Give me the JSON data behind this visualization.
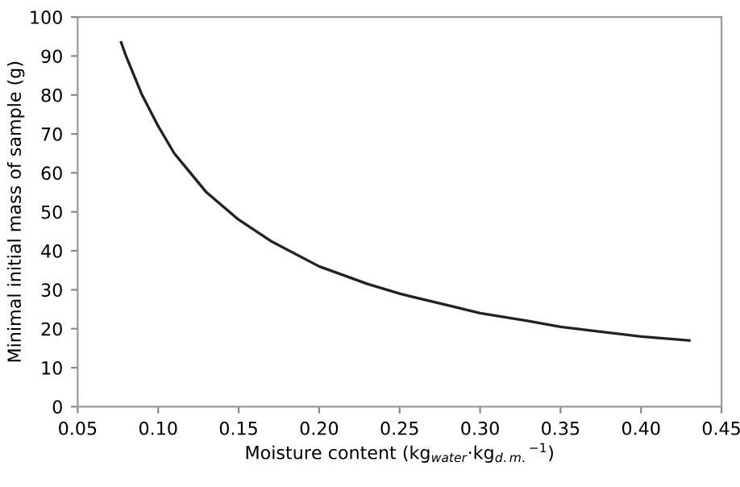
{
  "chart_data": {
    "type": "line",
    "xlabel": "Moisture content (kg$_{water}$·kg$_{d.m.}$$^{−1}$)",
    "ylabel": "Minimal initial mass of sample (g)",
    "x": [
      0.077,
      0.08,
      0.09,
      0.1,
      0.11,
      0.12,
      0.13,
      0.14,
      0.15,
      0.17,
      0.2,
      0.23,
      0.25,
      0.28,
      0.3,
      0.33,
      0.35,
      0.38,
      0.4,
      0.43
    ],
    "series": [
      {
        "color": "#222222",
        "values": [
          93.5,
          90,
          80,
          72,
          65,
          60,
          55,
          51.5,
          48,
          42.5,
          36,
          31.5,
          29,
          26,
          24,
          22,
          20.5,
          19,
          18,
          17
        ]
      }
    ],
    "xlim": [
      0.05,
      0.45
    ],
    "xticks": [
      {
        "value": 0.05,
        "label": "0.05"
      },
      {
        "value": 0.1,
        "label": "0.10"
      },
      {
        "value": 0.15,
        "label": "0.15"
      },
      {
        "value": 0.2,
        "label": "0.20"
      },
      {
        "value": 0.25,
        "label": "0.25"
      },
      {
        "value": 0.3,
        "label": "0.30"
      },
      {
        "value": 0.35,
        "label": "0.35"
      },
      {
        "value": 0.4,
        "label": "0.40"
      },
      {
        "value": 0.45,
        "label": "0.45"
      }
    ],
    "ylim": [
      0,
      100
    ],
    "yticks": [
      0,
      10,
      20,
      30,
      40,
      50,
      60,
      70,
      80,
      90,
      100
    ],
    "marker": "none",
    "line_style": "solid"
  }
}
